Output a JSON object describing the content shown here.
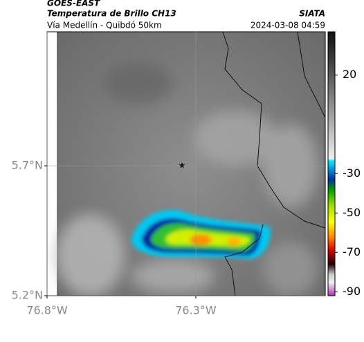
{
  "header": {
    "title": "GOES-EAST",
    "subtitle": "Temperatura de Brillo CH13",
    "region": "Vía Medellín - Quibdó 50km",
    "source": "SIATA",
    "datetime": "2024-03-08 04:59"
  },
  "map": {
    "xlim": [
      -76.8,
      -75.865
    ],
    "ylim": [
      5.2,
      6.216
    ],
    "xticks": [
      {
        "value": -76.8,
        "label": "76.8°W"
      },
      {
        "value": -76.3,
        "label": "76.3°W"
      }
    ],
    "yticks": [
      {
        "value": 5.2,
        "label": "5.2°N"
      },
      {
        "value": 5.7,
        "label": "5.7°N"
      }
    ],
    "grid": true
  },
  "colorbar": {
    "lim": [
      -92,
      42
    ],
    "ticks": [
      20,
      -30,
      -50,
      -70,
      -90
    ]
  }
}
